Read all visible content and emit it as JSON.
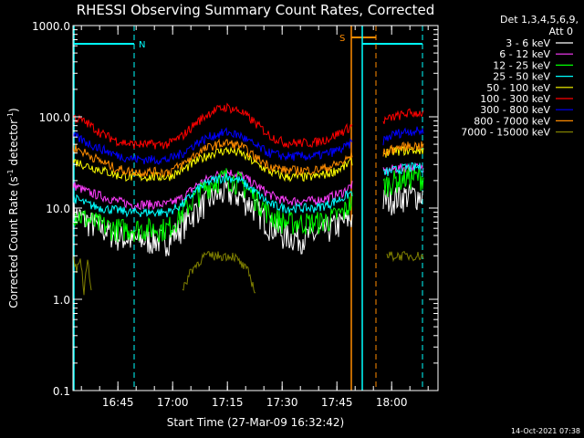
{
  "chart_data": {
    "type": "line",
    "title": "RHESSI Observing Summary Count Rates, Corrected",
    "xlabel": "Start Time (27-Mar-09 16:32:42)",
    "ylabel_main": "Corrected Count Rate (s",
    "ylabel_sup1": "-1",
    "ylabel_mid": " detector",
    "ylabel_sup2": "-1",
    "ylabel_end": ")",
    "yscale": "log",
    "ylim": [
      0.1,
      1000.0
    ],
    "xlim_minutes": [
      0,
      100
    ],
    "x_unit": "minutes after 16:32:42",
    "y_ticks": [
      {
        "v": 1000.0,
        "label": "1000.0"
      },
      {
        "v": 100.0,
        "label": "100.0"
      },
      {
        "v": 10.0,
        "label": "10.0"
      },
      {
        "v": 1.0,
        "label": "1.0"
      },
      {
        "v": 0.1,
        "label": "0.1"
      }
    ],
    "x_ticks": [
      {
        "m": 12.3,
        "label": "16:45"
      },
      {
        "m": 27.3,
        "label": "17:00"
      },
      {
        "m": 42.3,
        "label": "17:15"
      },
      {
        "m": 57.3,
        "label": "17:30"
      },
      {
        "m": 72.3,
        "label": "17:45"
      },
      {
        "m": 87.3,
        "label": "18:00"
      }
    ],
    "legend_header": [
      "Det 1,3,4,5,6,9,",
      "Att 0"
    ],
    "series": [
      {
        "name": "3 - 6 keV",
        "color": "#ffffff",
        "x": [
          0,
          4,
          8,
          12,
          16,
          20,
          26,
          30,
          34,
          38,
          42,
          46,
          50,
          54,
          58,
          62,
          66,
          70,
          74,
          76.5
        ],
        "y": [
          9,
          7.2,
          6.0,
          5.0,
          4.5,
          4.5,
          4.5,
          6.5,
          10,
          13,
          15,
          13.5,
          10,
          6.5,
          5.0,
          4.8,
          5.0,
          6.0,
          7.0,
          8.0
        ],
        "x2": [
          85,
          88,
          92,
          96
        ],
        "y2": [
          12,
          13,
          14,
          14
        ]
      },
      {
        "name": "6 - 12 keV",
        "color": "#ff3dff",
        "x": [
          0,
          4,
          8,
          12,
          16,
          20,
          26,
          30,
          34,
          38,
          42,
          46,
          50,
          54,
          58,
          62,
          66,
          70,
          74,
          76.5
        ],
        "y": [
          18,
          15,
          13.5,
          12,
          11,
          11,
          11,
          13,
          18,
          22,
          25,
          23,
          18,
          14,
          12,
          12,
          12,
          13,
          15,
          18
        ],
        "x2": [
          85,
          88,
          92,
          96
        ],
        "y2": [
          25,
          27,
          28,
          28
        ]
      },
      {
        "name": "12 - 25 keV",
        "color": "#00ff00",
        "x": [
          0,
          4,
          8,
          12,
          16,
          20,
          26,
          30,
          34,
          38,
          42,
          46,
          50,
          54,
          58,
          62,
          66,
          70,
          74,
          76.5
        ],
        "y": [
          9,
          7.5,
          6.5,
          6.0,
          6.0,
          6.0,
          6.0,
          9,
          14,
          19,
          22,
          19,
          13,
          8.5,
          7.0,
          7.0,
          7.0,
          7.5,
          9,
          12
        ],
        "x2": [
          85,
          88,
          92,
          96
        ],
        "y2": [
          18,
          20,
          22,
          22
        ]
      },
      {
        "name": "25 - 50 keV",
        "color": "#00ffff",
        "x": [
          0,
          4,
          8,
          12,
          16,
          20,
          26,
          30,
          34,
          38,
          42,
          46,
          50,
          54,
          58,
          62,
          66,
          70,
          74,
          76.5
        ],
        "y": [
          13,
          11,
          10,
          9.5,
          9,
          9,
          9,
          11,
          16,
          20,
          22,
          20,
          15,
          11,
          10,
          10,
          10,
          11,
          13,
          15
        ],
        "x2": [
          85,
          88,
          92,
          96
        ],
        "y2": [
          24,
          26,
          28,
          28
        ]
      },
      {
        "name": "50 - 100 keV",
        "color": "#ffff00",
        "x": [
          0,
          4,
          8,
          12,
          16,
          20,
          26,
          30,
          34,
          38,
          42,
          46,
          50,
          54,
          58,
          62,
          66,
          70,
          74,
          76.5
        ],
        "y": [
          33,
          29,
          26,
          23,
          22,
          22,
          22,
          26,
          33,
          40,
          43,
          40,
          31,
          25,
          22,
          22,
          22,
          24,
          28,
          33
        ],
        "x2": [
          85,
          88,
          92,
          96
        ],
        "y2": [
          40,
          42,
          43,
          43
        ]
      },
      {
        "name": "100 - 300 keV",
        "color": "#ff0000",
        "x": [
          0,
          4,
          8,
          12,
          16,
          20,
          26,
          30,
          34,
          38,
          42,
          46,
          50,
          54,
          58,
          62,
          66,
          70,
          74,
          76.5
        ],
        "y": [
          100,
          85,
          65,
          55,
          50,
          50,
          50,
          62,
          88,
          115,
          128,
          115,
          85,
          62,
          52,
          52,
          52,
          58,
          70,
          80
        ],
        "x2": [
          85,
          88,
          92,
          96
        ],
        "y2": [
          90,
          100,
          110,
          110
        ]
      },
      {
        "name": "300 - 800 keV",
        "color": "#0000ff",
        "x": [
          0,
          4,
          8,
          12,
          16,
          20,
          26,
          30,
          34,
          38,
          42,
          46,
          50,
          54,
          58,
          62,
          66,
          70,
          74,
          76.5
        ],
        "y": [
          62,
          52,
          44,
          38,
          35,
          34,
          34,
          40,
          52,
          62,
          68,
          62,
          48,
          40,
          37,
          37,
          37,
          40,
          45,
          52
        ],
        "x2": [
          85,
          88,
          92,
          96
        ],
        "y2": [
          55,
          65,
          70,
          70
        ]
      },
      {
        "name": "800 - 7000 keV",
        "color": "#ff8c00",
        "x": [
          0,
          4,
          8,
          12,
          16,
          20,
          26,
          30,
          34,
          38,
          42,
          46,
          50,
          54,
          58,
          62,
          66,
          70,
          74,
          76.5
        ],
        "y": [
          47,
          39,
          32,
          27,
          25,
          25,
          25,
          30,
          40,
          48,
          52,
          48,
          36,
          29,
          26,
          26,
          26,
          28,
          32,
          38
        ],
        "x2": [
          85,
          88,
          92,
          96
        ],
        "y2": [
          40,
          45,
          48,
          48
        ]
      },
      {
        "name": "7000 - 15000 keV",
        "color": "#808000",
        "x": [
          0,
          1,
          2,
          3,
          4,
          5
        ],
        "y": [
          3,
          2,
          3,
          1.2,
          3,
          1.2
        ],
        "x2": [
          30,
          32,
          36,
          40,
          44,
          48,
          50
        ],
        "y2": [
          1.2,
          2,
          3,
          3,
          3,
          2,
          1.2
        ],
        "x3": [
          86,
          88,
          92,
          96
        ],
        "y3": [
          3,
          3,
          3,
          3
        ]
      }
    ],
    "annotations": [
      {
        "text": "N",
        "color": "#00ffff"
      },
      {
        "text": "S",
        "color": "#ff8c00"
      }
    ],
    "footer_date": "14-Oct-2021 07:38"
  }
}
